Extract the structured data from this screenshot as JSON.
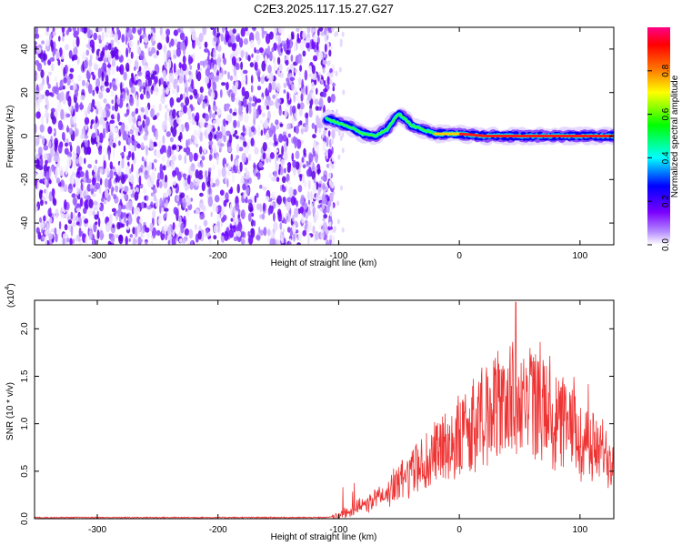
{
  "title": "C2E3.2025.117.15.27.G27",
  "chart_data": [
    {
      "type": "heatmap",
      "name": "spectrogram",
      "xlabel": "Height of straight line (km)",
      "ylabel": "Frequency (Hz)",
      "xlim": [
        -352,
        128
      ],
      "ylim": [
        -50,
        50
      ],
      "xticks": [
        -300,
        -200,
        -100,
        0,
        100
      ],
      "xtick_labels": [
        "-300",
        "-200",
        "-100",
        "0",
        "100"
      ],
      "yticks": [
        -40,
        -20,
        0,
        20,
        40
      ],
      "ytick_labels": [
        "-40",
        "-20",
        "0",
        "20",
        "40"
      ],
      "noise_region_x": [
        -352,
        -110
      ],
      "ridge": {
        "x": [
          -110,
          -100,
          -90,
          -80,
          -70,
          -60,
          -55,
          -50,
          -45,
          -40,
          -30,
          -20,
          -10,
          0,
          20,
          40,
          60,
          80,
          100,
          128
        ],
        "y": [
          8,
          6,
          4,
          1,
          0,
          3,
          7,
          10,
          8,
          5,
          3,
          1,
          1,
          1,
          0,
          0,
          0,
          0,
          0,
          0
        ]
      },
      "colorbar": {
        "label": "Normalized spectral amplitude",
        "range": [
          0,
          1
        ],
        "ticks": [
          0.0,
          0.2,
          0.4,
          0.6,
          0.8
        ],
        "tick_labels": [
          "0.0",
          "0.2",
          "0.4",
          "0.6",
          "0.8"
        ],
        "colors": [
          "#ffffff",
          "#7a00ff",
          "#0000ff",
          "#00ffff",
          "#00ff00",
          "#ffff00",
          "#ff7f00",
          "#ff0000",
          "#ff0088"
        ]
      }
    },
    {
      "type": "line",
      "name": "snr",
      "xlabel": "Height of straight line (km)",
      "ylabel": "SNR (10 * v/v)",
      "y_scale_label": "(x10",
      "y_scale_exp": "4",
      "xlim": [
        -352,
        128
      ],
      "ylim": [
        0,
        2.3
      ],
      "xticks": [
        -300,
        -200,
        -100,
        0,
        100
      ],
      "xtick_labels": [
        "-300",
        "-200",
        "-100",
        "0",
        "100"
      ],
      "yticks": [
        0.0,
        0.5,
        1.0,
        1.5,
        2.0
      ],
      "ytick_labels": [
        "0.0",
        "0.5",
        "1.0",
        "1.5",
        "2.0"
      ],
      "color": "#ee3333",
      "envelope": {
        "x": [
          -352,
          -110,
          -100,
          -80,
          -60,
          -40,
          -20,
          0,
          20,
          40,
          60,
          80,
          100,
          115,
          128
        ],
        "y": [
          0.01,
          0.01,
          0.03,
          0.15,
          0.3,
          0.55,
          0.75,
          0.95,
          1.2,
          1.4,
          1.35,
          1.15,
          0.95,
          0.8,
          0.7
        ]
      },
      "peak": {
        "x": 47,
        "y": 2.28
      }
    }
  ]
}
